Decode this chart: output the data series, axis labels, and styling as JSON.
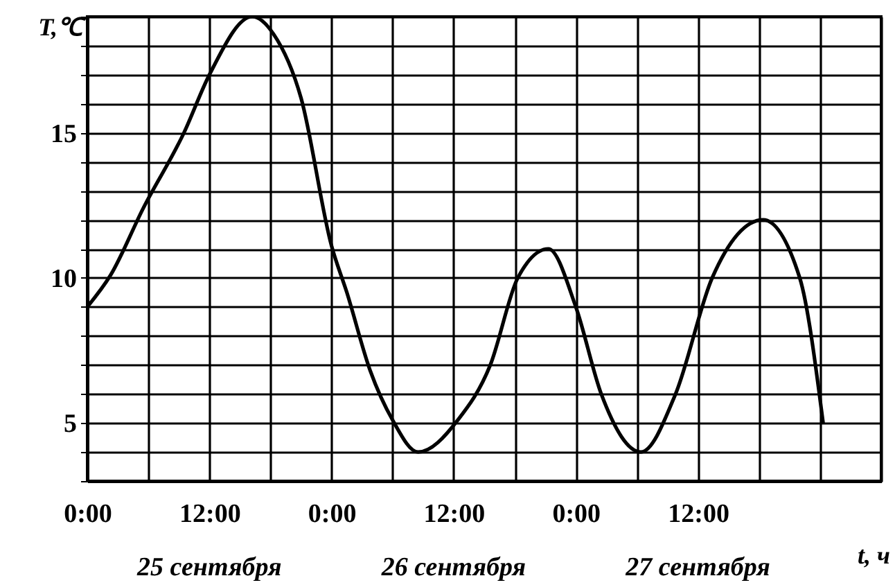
{
  "chart_data": {
    "type": "line",
    "xlabel": "t, ч",
    "ylabel": "T,℃",
    "x": [
      "--09-25T00:00",
      "--09-25T02:18",
      "--09-25T05:30",
      "--09-25T09:30",
      "--09-25T12:00",
      "--09-25T16:12",
      "--09-25T18:18",
      "--09-25T21:00",
      "--09-26T00:00",
      "--09-26T01:30",
      "--09-26T03:48",
      "--09-26T06:00",
      "--09-26T08:30",
      "--09-26T12:24",
      "--09-26T15:36",
      "--09-26T18:18",
      "--09-26T21:18",
      "--09-27T00:00",
      "--09-27T02:30",
      "--09-27T06:24",
      "--09-27T09:48",
      "--09-27T13:24",
      "--09-27T18:24",
      "--09-27T22:00",
      "--09-28T00:18"
    ],
    "series": [
      {
        "color": "#000000",
        "values": [
          9,
          10.1,
          12.4,
          15,
          17,
          19,
          18.4,
          16.2,
          11.1,
          9.5,
          6.8,
          5.1,
          4,
          5.1,
          7,
          10,
          11,
          9,
          6,
          4,
          6,
          10,
          12,
          10,
          5
        ]
      }
    ],
    "xlim": [
      "--09-25T00:00",
      "--09-28T06:00"
    ],
    "xticks": [
      {
        "value": "--09-25T00:00",
        "label": "0:00"
      },
      {
        "value": "--09-25T06:00",
        "label": null
      },
      {
        "value": "--09-25T12:00",
        "label": "12:00"
      },
      {
        "value": "--09-25T18:00",
        "label": null
      },
      {
        "value": "--09-26T00:00",
        "label": "0:00"
      },
      {
        "value": "--09-26T06:00",
        "label": null
      },
      {
        "value": "--09-26T12:00",
        "label": "12:00"
      },
      {
        "value": "--09-26T18:00",
        "label": null
      },
      {
        "value": "--09-27T00:00",
        "label": "0:00"
      },
      {
        "value": "--09-27T06:00",
        "label": null
      },
      {
        "value": "--09-27T12:00",
        "label": "12:00"
      },
      {
        "value": "--09-27T18:00",
        "label": null
      },
      {
        "value": "--09-28T00:00",
        "label": null
      },
      {
        "value": "--09-28T06:00",
        "label": null
      }
    ],
    "ylim": [
      3,
      19
    ],
    "yticks": [
      {
        "value": 3,
        "label": null
      },
      {
        "value": 4,
        "label": null
      },
      5,
      {
        "value": 6,
        "label": null
      },
      {
        "value": 7,
        "label": null
      },
      {
        "value": 8,
        "label": null
      },
      {
        "value": 9,
        "label": null
      },
      10,
      {
        "value": 11,
        "label": null
      },
      {
        "value": 12,
        "label": null
      },
      {
        "value": 13,
        "label": null
      },
      {
        "value": 14,
        "label": null
      },
      15,
      {
        "value": 16,
        "label": null
      },
      {
        "value": 17,
        "label": null
      },
      {
        "value": 18,
        "label": null
      },
      {
        "value": 19,
        "label": null
      }
    ],
    "grid": true,
    "line_style": "solid",
    "marker": "none",
    "annotations": [
      "25 сентября",
      "26 сентября",
      "27 сентября"
    ]
  }
}
